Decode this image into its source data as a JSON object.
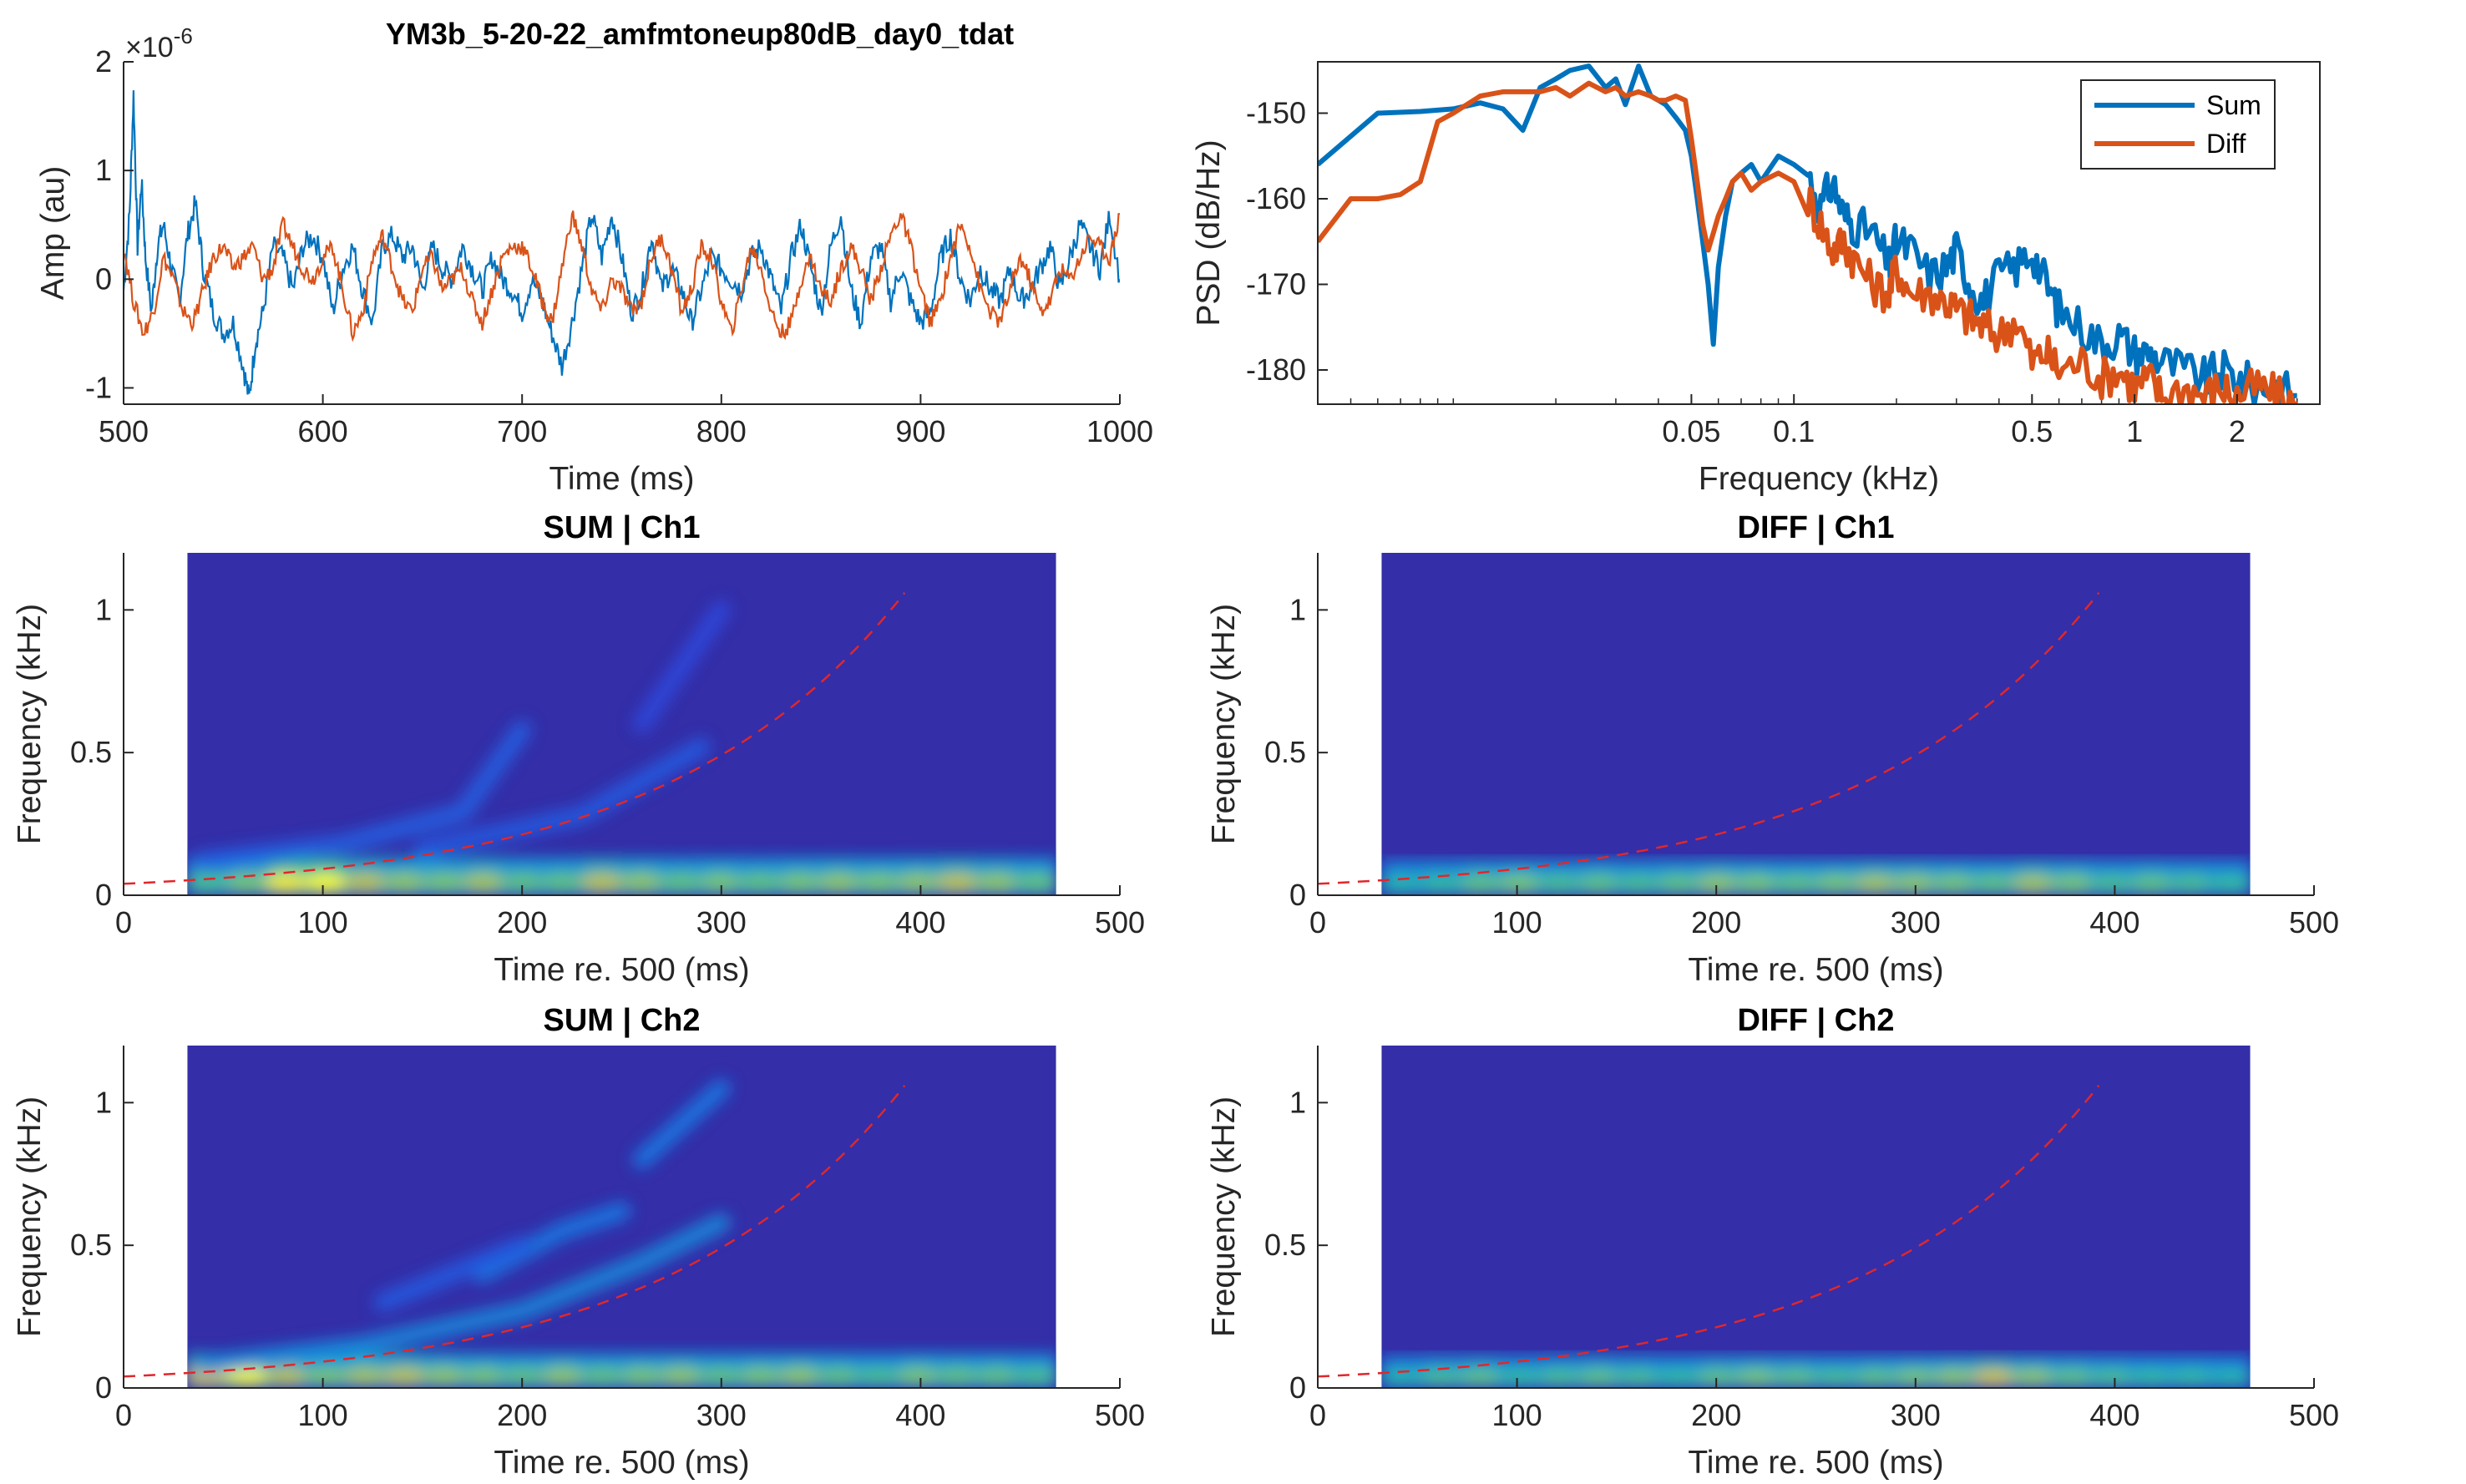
{
  "figure": {
    "title": "YM3b_5-20-22_amfmtoneup80dB_day0_tdat"
  },
  "chart_data": [
    {
      "id": "waveform",
      "type": "line",
      "title": "",
      "xlabel": "Time (ms)",
      "ylabel": "Amp (au)",
      "exponent_label": "×10",
      "exponent_value": "-6",
      "xlim": [
        500,
        1000
      ],
      "ylim": [
        -1.15,
        2.0
      ],
      "xticks": [
        500,
        600,
        700,
        800,
        900,
        1000
      ],
      "yticks": [
        -1,
        0,
        1,
        2
      ],
      "series": [
        {
          "color": "#0072BD",
          "x": [
            500,
            503,
            505,
            507,
            509,
            511,
            514,
            517,
            520,
            524,
            528,
            532,
            536,
            540,
            545,
            550,
            555,
            560,
            563,
            566,
            570,
            575,
            580,
            585,
            590,
            595,
            600,
            605,
            610,
            615,
            620,
            625,
            630,
            635,
            640,
            645,
            650,
            655,
            660,
            665,
            670,
            675,
            680,
            685,
            690,
            695,
            700,
            705,
            710,
            715,
            720,
            725,
            730,
            735,
            740,
            745,
            750,
            755,
            760,
            765,
            770,
            775,
            780,
            785,
            790,
            795,
            800,
            805,
            810,
            815,
            820,
            825,
            830,
            835,
            840,
            845,
            850,
            855,
            860,
            865,
            870,
            875,
            880,
            885,
            890,
            895,
            900,
            905,
            910,
            915,
            920,
            925,
            930,
            935,
            940,
            945,
            950,
            955,
            960,
            965,
            970,
            975,
            980,
            985,
            990,
            995,
            1000
          ],
          "y": [
            -0.1,
            0.6,
            1.7,
            0.3,
            0.9,
            0.2,
            -0.3,
            0.3,
            0.5,
            0.1,
            -0.2,
            0.4,
            0.7,
            0.1,
            -0.3,
            -0.5,
            -0.4,
            -0.8,
            -1.1,
            -0.6,
            -0.3,
            0.3,
            0.2,
            -0.1,
            0.3,
            0.4,
            0.2,
            -0.3,
            0.1,
            0.3,
            -0.1,
            -0.4,
            0.3,
            0.4,
            0.2,
            0.3,
            -0.1,
            0.3,
            0.1,
            0.0,
            0.3,
            0.1,
            -0.1,
            0.2,
            0.0,
            -0.1,
            -0.3,
            0.0,
            -0.2,
            -0.5,
            -0.8,
            -0.4,
            0.1,
            0.6,
            0.2,
            0.6,
            0.2,
            -0.3,
            -0.1,
            0.4,
            -0.1,
            0.1,
            -0.1,
            -0.4,
            -0.1,
            0.2,
            0.1,
            0.0,
            -0.1,
            0.2,
            0.3,
            0.0,
            -0.3,
            0.2,
            0.5,
            0.1,
            -0.3,
            0.3,
            0.6,
            -0.1,
            -0.4,
            0.2,
            0.3,
            -0.2,
            0.1,
            -0.2,
            -0.4,
            -0.3,
            0.2,
            0.4,
            0.0,
            -0.2,
            0.1,
            -0.1,
            -0.2,
            0.1,
            -0.2,
            -0.1,
            0.1,
            0.3,
            -0.1,
            0.2,
            0.5,
            0.3,
            0.1,
            0.6,
            0.0
          ]
        },
        {
          "color": "#D95319",
          "x": [
            500,
            505,
            510,
            515,
            520,
            525,
            530,
            535,
            540,
            545,
            550,
            555,
            560,
            565,
            570,
            575,
            580,
            585,
            590,
            595,
            600,
            605,
            610,
            615,
            620,
            625,
            630,
            635,
            640,
            645,
            650,
            655,
            660,
            665,
            670,
            675,
            680,
            685,
            690,
            695,
            700,
            705,
            710,
            715,
            720,
            725,
            730,
            735,
            740,
            745,
            750,
            755,
            760,
            765,
            770,
            775,
            780,
            785,
            790,
            795,
            800,
            805,
            810,
            815,
            820,
            825,
            830,
            835,
            840,
            845,
            850,
            855,
            860,
            865,
            870,
            875,
            880,
            885,
            890,
            895,
            900,
            905,
            910,
            915,
            920,
            925,
            930,
            935,
            940,
            945,
            950,
            955,
            960,
            965,
            970,
            975,
            980,
            985,
            990,
            995,
            1000
          ],
          "y": [
            0.3,
            -0.2,
            -0.5,
            -0.3,
            0.2,
            0.0,
            -0.3,
            -0.4,
            -0.1,
            0.2,
            0.3,
            0.1,
            0.2,
            0.3,
            0.0,
            0.1,
            0.5,
            0.3,
            0.1,
            0.0,
            0.2,
            0.3,
            -0.1,
            -0.5,
            -0.3,
            0.2,
            0.4,
            0.1,
            -0.2,
            -0.3,
            0.1,
            0.2,
            -0.1,
            0.0,
            0.1,
            -0.2,
            -0.4,
            -0.1,
            0.2,
            0.3,
            0.3,
            0.1,
            -0.2,
            -0.4,
            0.1,
            0.6,
            0.3,
            -0.1,
            -0.3,
            0.0,
            -0.1,
            -0.3,
            -0.2,
            0.2,
            0.4,
            0.1,
            -0.3,
            -0.1,
            0.3,
            0.2,
            -0.2,
            -0.5,
            -0.1,
            0.3,
            0.1,
            -0.3,
            -0.5,
            -0.4,
            0.0,
            0.2,
            -0.1,
            -0.2,
            0.1,
            0.3,
            0.1,
            -0.2,
            0.1,
            0.4,
            0.6,
            0.3,
            -0.1,
            -0.4,
            -0.2,
            0.2,
            0.5,
            0.3,
            -0.1,
            -0.3,
            -0.4,
            -0.1,
            0.2,
            0.0,
            -0.3,
            -0.2,
            0.1,
            0.0,
            0.2,
            0.4,
            0.3,
            0.2,
            0.6
          ]
        }
      ]
    },
    {
      "id": "psd",
      "type": "line",
      "title": "",
      "xlabel": "Frequency (kHz)",
      "ylabel": "PSD (dB/Hz)",
      "xscale": "log",
      "xlim": [
        0.004,
        3.5
      ],
      "ylim": [
        -184,
        -144
      ],
      "xticks": [
        0.05,
        0.1,
        0.5,
        1,
        2
      ],
      "xtick_labels": [
        "0.05",
        "0.1",
        "0.5",
        "1",
        "2"
      ],
      "yticks": [
        -180,
        -170,
        -160,
        -150
      ],
      "legend": "top-right",
      "series": [
        {
          "name": "Sum",
          "color": "#0072BD",
          "x": [
            0.004,
            0.006,
            0.008,
            0.01,
            0.012,
            0.014,
            0.016,
            0.018,
            0.02,
            0.022,
            0.025,
            0.028,
            0.03,
            0.032,
            0.035,
            0.038,
            0.04,
            0.042,
            0.045,
            0.048,
            0.05,
            0.052,
            0.054,
            0.056,
            0.058,
            0.06,
            0.063,
            0.066,
            0.07,
            0.075,
            0.08,
            0.09,
            0.1,
            0.11,
            0.12,
            0.13,
            0.14,
            0.15,
            0.17,
            0.19,
            0.2,
            0.22,
            0.25,
            0.28,
            0.3,
            0.33,
            0.36,
            0.4,
            0.45,
            0.5,
            0.55,
            0.6,
            0.7,
            0.8,
            0.9,
            1.0,
            1.1,
            1.2,
            1.4,
            1.6,
            1.8,
            2.0,
            2.3,
            2.6,
            3.0
          ],
          "y": [
            -156,
            -150,
            -149.8,
            -149.5,
            -148.8,
            -149.5,
            -152,
            -147,
            -146,
            -145,
            -144.5,
            -147,
            -146,
            -149,
            -144.5,
            -148,
            -148.5,
            -149,
            -150.5,
            -152,
            -155,
            -160,
            -165,
            -170,
            -177,
            -168,
            -162,
            -158,
            -157,
            -156,
            -158,
            -155,
            -156,
            -157,
            -161,
            -158,
            -162,
            -163,
            -164,
            -168,
            -165,
            -166,
            -169,
            -168,
            -166,
            -170,
            -172,
            -169,
            -168,
            -166,
            -170,
            -173,
            -175,
            -177,
            -176,
            -178,
            -178,
            -179,
            -180,
            -181,
            -180,
            -181,
            -182,
            -182,
            -183
          ]
        },
        {
          "name": "Diff",
          "color": "#D95319",
          "x": [
            0.004,
            0.005,
            0.006,
            0.007,
            0.008,
            0.009,
            0.01,
            0.012,
            0.014,
            0.016,
            0.018,
            0.02,
            0.022,
            0.025,
            0.028,
            0.03,
            0.032,
            0.035,
            0.038,
            0.04,
            0.042,
            0.045,
            0.048,
            0.05,
            0.052,
            0.054,
            0.056,
            0.058,
            0.06,
            0.063,
            0.066,
            0.07,
            0.075,
            0.08,
            0.09,
            0.1,
            0.11,
            0.12,
            0.13,
            0.14,
            0.15,
            0.17,
            0.19,
            0.2,
            0.22,
            0.25,
            0.28,
            0.3,
            0.33,
            0.36,
            0.4,
            0.45,
            0.5,
            0.55,
            0.6,
            0.7,
            0.8,
            0.9,
            1.0,
            1.1,
            1.2,
            1.4,
            1.6,
            1.8,
            2.0,
            2.3,
            2.6,
            3.0
          ],
          "y": [
            -165,
            -160,
            -160,
            -159.5,
            -158,
            -151,
            -150,
            -148,
            -147.5,
            -147.5,
            -147.5,
            -147,
            -148,
            -146.5,
            -147.5,
            -147,
            -148,
            -147.5,
            -148,
            -148.5,
            -148.5,
            -148,
            -148.5,
            -153,
            -158,
            -163,
            -166,
            -164,
            -162,
            -160,
            -158,
            -157,
            -159,
            -158,
            -157,
            -158,
            -160,
            -163,
            -166,
            -165,
            -167,
            -170,
            -171,
            -168,
            -171,
            -171,
            -172,
            -173,
            -174,
            -175,
            -176,
            -174,
            -179,
            -178,
            -180,
            -179,
            -181,
            -180,
            -182,
            -181,
            -183,
            -182,
            -183,
            -182,
            -183,
            -182,
            -183,
            -184
          ]
        }
      ]
    },
    {
      "id": "spec-sum-ch1",
      "type": "heatmap",
      "title": "SUM | Ch1",
      "xlabel": "Time re. 500 (ms)",
      "ylabel": "Frequency (kHz)",
      "xlim": [
        0,
        500
      ],
      "ylim": [
        0,
        1.2
      ],
      "xticks": [
        0,
        100,
        200,
        300,
        400,
        500
      ],
      "yticks": [
        0,
        0.5,
        1
      ],
      "data_xrange": [
        32,
        468
      ],
      "sweep": {
        "f0_khz": 0.04,
        "rate_per_ms": 0.00836,
        "t_from": 0,
        "t_to": 392
      },
      "features": [
        {
          "t": [
            40,
            110,
            170,
            200
          ],
          "f": [
            0.12,
            0.18,
            0.29,
            0.58
          ],
          "strength": 0.35
        },
        {
          "t": [
            150,
            230,
            290
          ],
          "f": [
            0.16,
            0.28,
            0.52
          ],
          "strength": 0.3
        },
        {
          "t": [
            260,
            300
          ],
          "f": [
            0.6,
            1.0
          ],
          "strength": 0.15
        }
      ],
      "lowband": {
        "f_max": 0.13,
        "intensity": [
          0.45,
          0.55,
          0.95,
          1.0,
          0.7,
          0.6,
          0.55,
          0.65,
          0.5,
          0.5,
          0.7,
          0.6,
          0.5,
          0.55,
          0.5,
          0.55,
          0.6,
          0.55,
          0.6,
          0.7,
          0.6,
          0.5
        ]
      }
    },
    {
      "id": "spec-diff-ch1",
      "type": "heatmap",
      "title": "DIFF | Ch1",
      "xlabel": "Time re. 500 (ms)",
      "ylabel": "Frequency (kHz)",
      "xlim": [
        0,
        500
      ],
      "ylim": [
        0,
        1.2
      ],
      "xticks": [
        0,
        100,
        200,
        300,
        400,
        500
      ],
      "yticks": [
        0,
        0.5,
        1
      ],
      "data_xrange": [
        32,
        468
      ],
      "sweep": {
        "f0_khz": 0.04,
        "rate_per_ms": 0.00836,
        "t_from": 0,
        "t_to": 392
      },
      "features": [],
      "lowband": {
        "f_max": 0.12,
        "intensity": [
          0.35,
          0.4,
          0.5,
          0.55,
          0.45,
          0.5,
          0.45,
          0.5,
          0.6,
          0.55,
          0.5,
          0.55,
          0.65,
          0.6,
          0.55,
          0.5,
          0.65,
          0.55,
          0.45,
          0.5,
          0.45,
          0.4
        ]
      }
    },
    {
      "id": "spec-sum-ch2",
      "type": "heatmap",
      "title": "SUM | Ch2",
      "xlabel": "Time re. 500 (ms)",
      "ylabel": "Frequency (kHz)",
      "xlim": [
        0,
        500
      ],
      "ylim": [
        0,
        1.2
      ],
      "xticks": [
        0,
        100,
        200,
        300,
        400,
        500
      ],
      "yticks": [
        0,
        0.5,
        1
      ],
      "data_xrange": [
        32,
        468
      ],
      "sweep": {
        "f0_khz": 0.04,
        "rate_per_ms": 0.00836,
        "t_from": 0,
        "t_to": 392
      },
      "features": [
        {
          "t": [
            40,
            120,
            200,
            260,
            300
          ],
          "f": [
            0.08,
            0.15,
            0.27,
            0.44,
            0.58
          ],
          "strength": 0.7
        },
        {
          "t": [
            180,
            220,
            250
          ],
          "f": [
            0.4,
            0.55,
            0.62
          ],
          "strength": 0.55
        },
        {
          "t": [
            260,
            300
          ],
          "f": [
            0.8,
            1.05
          ],
          "strength": 0.55
        },
        {
          "t": [
            130,
            200
          ],
          "f": [
            0.3,
            0.5
          ],
          "strength": 0.3
        }
      ],
      "lowband": {
        "f_max": 0.12,
        "intensity": [
          0.8,
          1.0,
          0.7,
          0.55,
          0.65,
          0.7,
          0.6,
          0.55,
          0.5,
          0.6,
          0.5,
          0.55,
          0.6,
          0.5,
          0.55,
          0.6,
          0.5,
          0.45,
          0.55,
          0.5,
          0.5,
          0.45
        ]
      }
    },
    {
      "id": "spec-diff-ch2",
      "type": "heatmap",
      "title": "DIFF | Ch2",
      "xlabel": "Time re. 500 (ms)",
      "ylabel": "Frequency (kHz)",
      "xlim": [
        0,
        500
      ],
      "ylim": [
        0,
        1.2
      ],
      "xticks": [
        0,
        100,
        200,
        300,
        400,
        500
      ],
      "yticks": [
        0,
        0.5,
        1
      ],
      "data_xrange": [
        32,
        468
      ],
      "sweep": {
        "f0_khz": 0.04,
        "rate_per_ms": 0.00836,
        "t_from": 0,
        "t_to": 392
      },
      "features": [],
      "lowband": {
        "f_max": 0.11,
        "intensity": [
          0.35,
          0.45,
          0.5,
          0.4,
          0.45,
          0.5,
          0.45,
          0.4,
          0.5,
          0.55,
          0.5,
          0.45,
          0.5,
          0.55,
          0.6,
          0.75,
          0.6,
          0.5,
          0.45,
          0.4,
          0.4,
          0.35
        ]
      }
    }
  ]
}
